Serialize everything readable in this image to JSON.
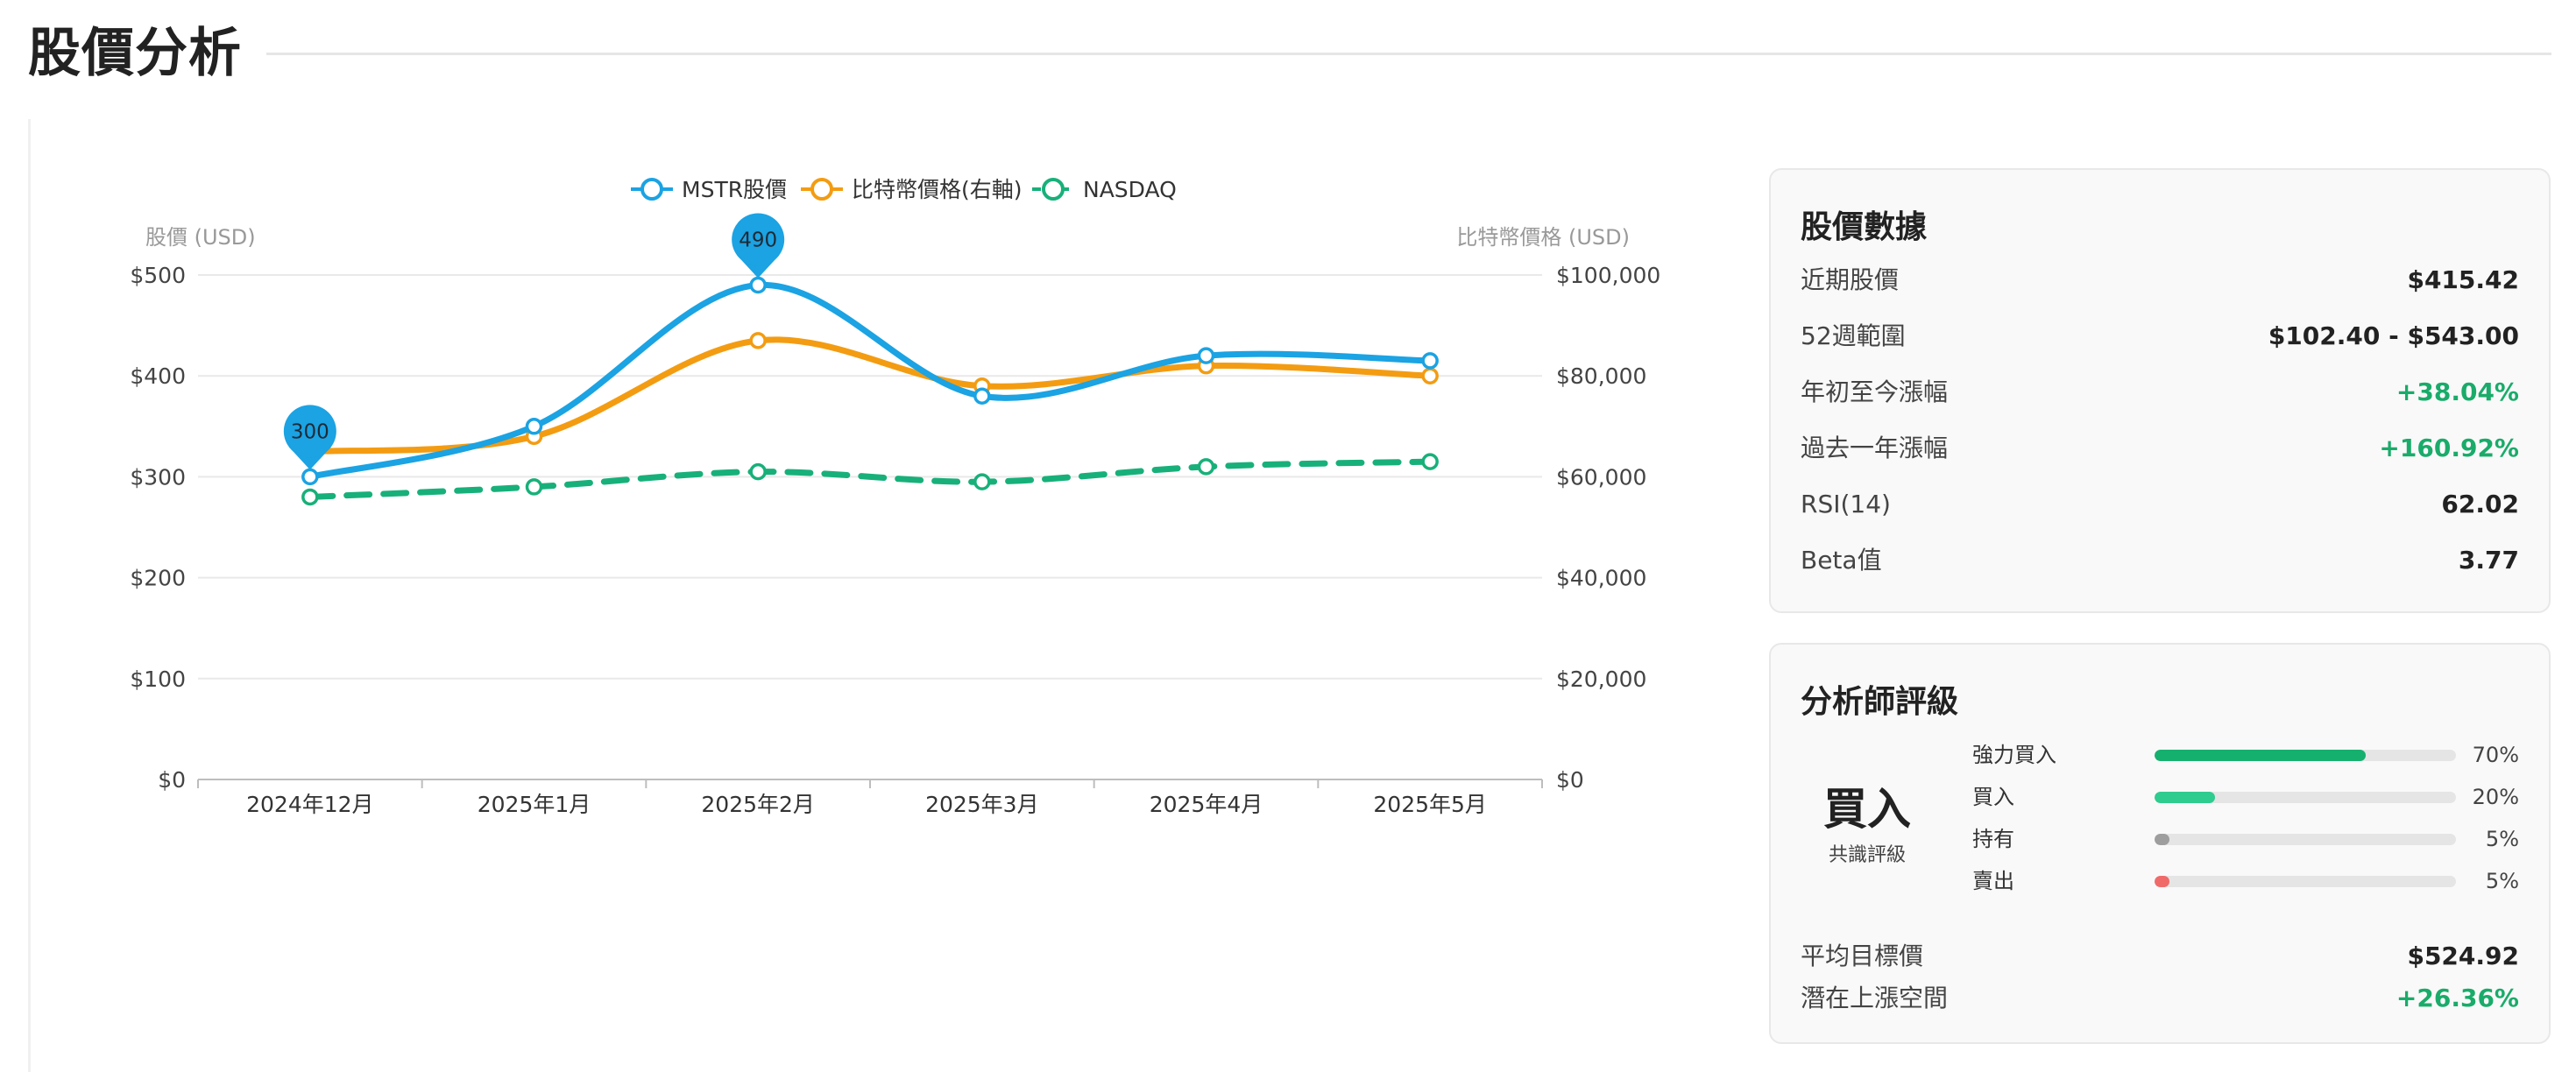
{
  "page": {
    "title": "股價分析"
  },
  "chart_data": {
    "type": "line",
    "categories": [
      "2024年12月",
      "2025年1月",
      "2025年2月",
      "2025年3月",
      "2025年4月",
      "2025年5月"
    ],
    "series": [
      {
        "name": "MSTR股價",
        "axis": "left",
        "color": "#1ba3e3",
        "style": "solid",
        "values": [
          300,
          350,
          490,
          380,
          420,
          415
        ]
      },
      {
        "name": "比特幣價格(右軸)",
        "axis": "right",
        "color": "#f39c12",
        "style": "solid",
        "values": [
          65000,
          68000,
          87000,
          78000,
          82000,
          80000
        ]
      },
      {
        "name": "NASDAQ",
        "axis": "left",
        "color": "#18b07a",
        "style": "dashed",
        "values": [
          280,
          290,
          305,
          295,
          310,
          315
        ]
      }
    ],
    "ylabel_left": "股價 (USD)",
    "ylabel_right": "比特幣價格 (USD)",
    "ylim_left": [
      0,
      500
    ],
    "ylim_right": [
      0,
      100000
    ],
    "yticks_left": [
      "$0",
      "$100",
      "$200",
      "$300",
      "$400",
      "$500"
    ],
    "yticks_right": [
      "$0",
      "$20,000",
      "$40,000",
      "$60,000",
      "$80,000",
      "$100,000"
    ],
    "annotations": [
      {
        "series": "MSTR股價",
        "category": "2024年12月",
        "label": "300"
      },
      {
        "series": "MSTR股價",
        "category": "2025年2月",
        "label": "490"
      }
    ],
    "grid": true,
    "legend": "top-center"
  },
  "stock_stats": {
    "title": "股價數據",
    "rows": [
      {
        "label": "近期股價",
        "value": "$415.42",
        "tone": "neutral"
      },
      {
        "label": "52週範圍",
        "value": "$102.40 - $543.00",
        "tone": "neutral"
      },
      {
        "label": "年初至今漲幅",
        "value": "+38.04%",
        "tone": "positive"
      },
      {
        "label": "過去一年漲幅",
        "value": "+160.92%",
        "tone": "positive"
      },
      {
        "label": "RSI(14)",
        "value": "62.02",
        "tone": "neutral"
      },
      {
        "label": "Beta值",
        "value": "3.77",
        "tone": "neutral"
      }
    ]
  },
  "analyst": {
    "title": "分析師評級",
    "consensus": "買入",
    "consensus_label": "共識評級",
    "ratings": [
      {
        "label": "強力買入",
        "percent": 70,
        "percent_text": "70%",
        "color": "#16b06e"
      },
      {
        "label": "買入",
        "percent": 20,
        "percent_text": "20%",
        "color": "#2ecc8e"
      },
      {
        "label": "持有",
        "percent": 5,
        "percent_text": "5%",
        "color": "#9e9e9e"
      },
      {
        "label": "賣出",
        "percent": 5,
        "percent_text": "5%",
        "color": "#f06a6a"
      }
    ],
    "target_label": "平均目標價",
    "target_value": "$524.92",
    "upside_label": "潛在上漲空間",
    "upside_value": "+26.36%"
  }
}
